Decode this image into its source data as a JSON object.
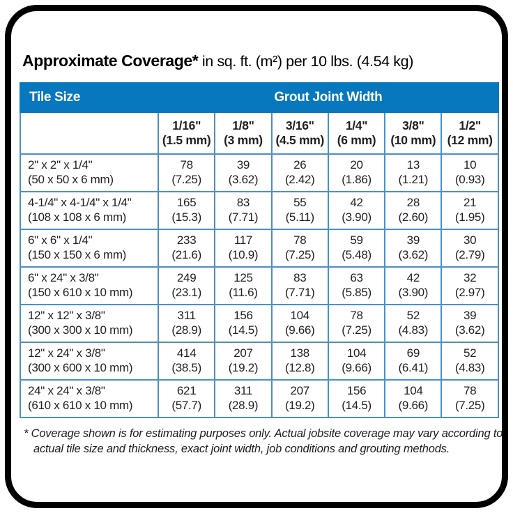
{
  "title": {
    "bold": "Approximate Coverage*",
    "units": " in sq. ft. (m²) per 10 lbs. (4.54 kg)"
  },
  "colors": {
    "header_blue": "#0878be",
    "grid_blue": "#4a90c8",
    "frame_black": "#000000",
    "text": "#231f20"
  },
  "table": {
    "corner_label": "Tile Size",
    "group_label": "Grout Joint Width",
    "columns": [
      {
        "fraction": "1/16\"",
        "metric": "(1.5 mm)"
      },
      {
        "fraction": "1/8\"",
        "metric": "(3 mm)"
      },
      {
        "fraction": "3/16\"",
        "metric": "(4.5 mm)"
      },
      {
        "fraction": "1/4\"",
        "metric": "(6 mm)"
      },
      {
        "fraction": "3/8\"",
        "metric": "(10 mm)"
      },
      {
        "fraction": "1/2\"",
        "metric": "(12 mm)"
      }
    ],
    "rows": [
      {
        "size_in": "2\" x 2\" x 1/4\"",
        "size_mm": "(50 x 50 x 6 mm)",
        "values": [
          {
            "sqft": "78",
            "m2": "(7.25)"
          },
          {
            "sqft": "39",
            "m2": "(3.62)"
          },
          {
            "sqft": "26",
            "m2": "(2.42)"
          },
          {
            "sqft": "20",
            "m2": "(1.86)"
          },
          {
            "sqft": "13",
            "m2": "(1.21)"
          },
          {
            "sqft": "10",
            "m2": "(0.93)"
          }
        ]
      },
      {
        "size_in": "4-1/4\" x 4-1/4\" x 1/4\"",
        "size_mm": "(108 x 108 x 6 mm)",
        "values": [
          {
            "sqft": "165",
            "m2": "(15.3)"
          },
          {
            "sqft": "83",
            "m2": "(7.71)"
          },
          {
            "sqft": "55",
            "m2": "(5.11)"
          },
          {
            "sqft": "42",
            "m2": "(3.90)"
          },
          {
            "sqft": "28",
            "m2": "(2.60)"
          },
          {
            "sqft": "21",
            "m2": "(1.95)"
          }
        ]
      },
      {
        "size_in": "6\" x 6\" x 1/4\"",
        "size_mm": "(150 x 150 x 6 mm)",
        "values": [
          {
            "sqft": "233",
            "m2": "(21.6)"
          },
          {
            "sqft": "117",
            "m2": "(10.9)"
          },
          {
            "sqft": "78",
            "m2": "(7.25)"
          },
          {
            "sqft": "59",
            "m2": "(5.48)"
          },
          {
            "sqft": "39",
            "m2": "(3.62)"
          },
          {
            "sqft": "30",
            "m2": "(2.79)"
          }
        ]
      },
      {
        "size_in": "6\" x 24\" x 3/8\"",
        "size_mm": "(150 x 610 x 10 mm)",
        "values": [
          {
            "sqft": "249",
            "m2": "(23.1)"
          },
          {
            "sqft": "125",
            "m2": "(11.6)"
          },
          {
            "sqft": "83",
            "m2": "(7.71)"
          },
          {
            "sqft": "63",
            "m2": "(5.85)"
          },
          {
            "sqft": "42",
            "m2": "(3.90)"
          },
          {
            "sqft": "32",
            "m2": "(2.97)"
          }
        ]
      },
      {
        "size_in": "12\" x 12\" x 3/8\"",
        "size_mm": "(300 x 300 x 10 mm)",
        "values": [
          {
            "sqft": "311",
            "m2": "(28.9)"
          },
          {
            "sqft": "156",
            "m2": "(14.5)"
          },
          {
            "sqft": "104",
            "m2": "(9.66)"
          },
          {
            "sqft": "78",
            "m2": "(7.25)"
          },
          {
            "sqft": "52",
            "m2": "(4.83)"
          },
          {
            "sqft": "39",
            "m2": "(3.62)"
          }
        ]
      },
      {
        "size_in": "12\" x 24\" x 3/8\"",
        "size_mm": "(300 x 600 x 10 mm)",
        "values": [
          {
            "sqft": "414",
            "m2": "(38.5)"
          },
          {
            "sqft": "207",
            "m2": "(19.2)"
          },
          {
            "sqft": "138",
            "m2": "(12.8)"
          },
          {
            "sqft": "104",
            "m2": "(9.66)"
          },
          {
            "sqft": "69",
            "m2": "(6.41)"
          },
          {
            "sqft": "52",
            "m2": "(4.83)"
          }
        ]
      },
      {
        "size_in": "24\" x 24\" x 3/8\"",
        "size_mm": "(610 x 610 x 10 mm)",
        "values": [
          {
            "sqft": "621",
            "m2": "(57.7)"
          },
          {
            "sqft": "311",
            "m2": "(28.9)"
          },
          {
            "sqft": "207",
            "m2": "(19.2)"
          },
          {
            "sqft": "156",
            "m2": "(14.5)"
          },
          {
            "sqft": "104",
            "m2": "(9.66)"
          },
          {
            "sqft": "78",
            "m2": "(7.25)"
          }
        ]
      }
    ]
  },
  "footnote": "* Coverage shown is for estimating purposes only. Actual jobsite coverage may vary according to actual tile size and thickness, exact joint width, job conditions and grouting methods."
}
